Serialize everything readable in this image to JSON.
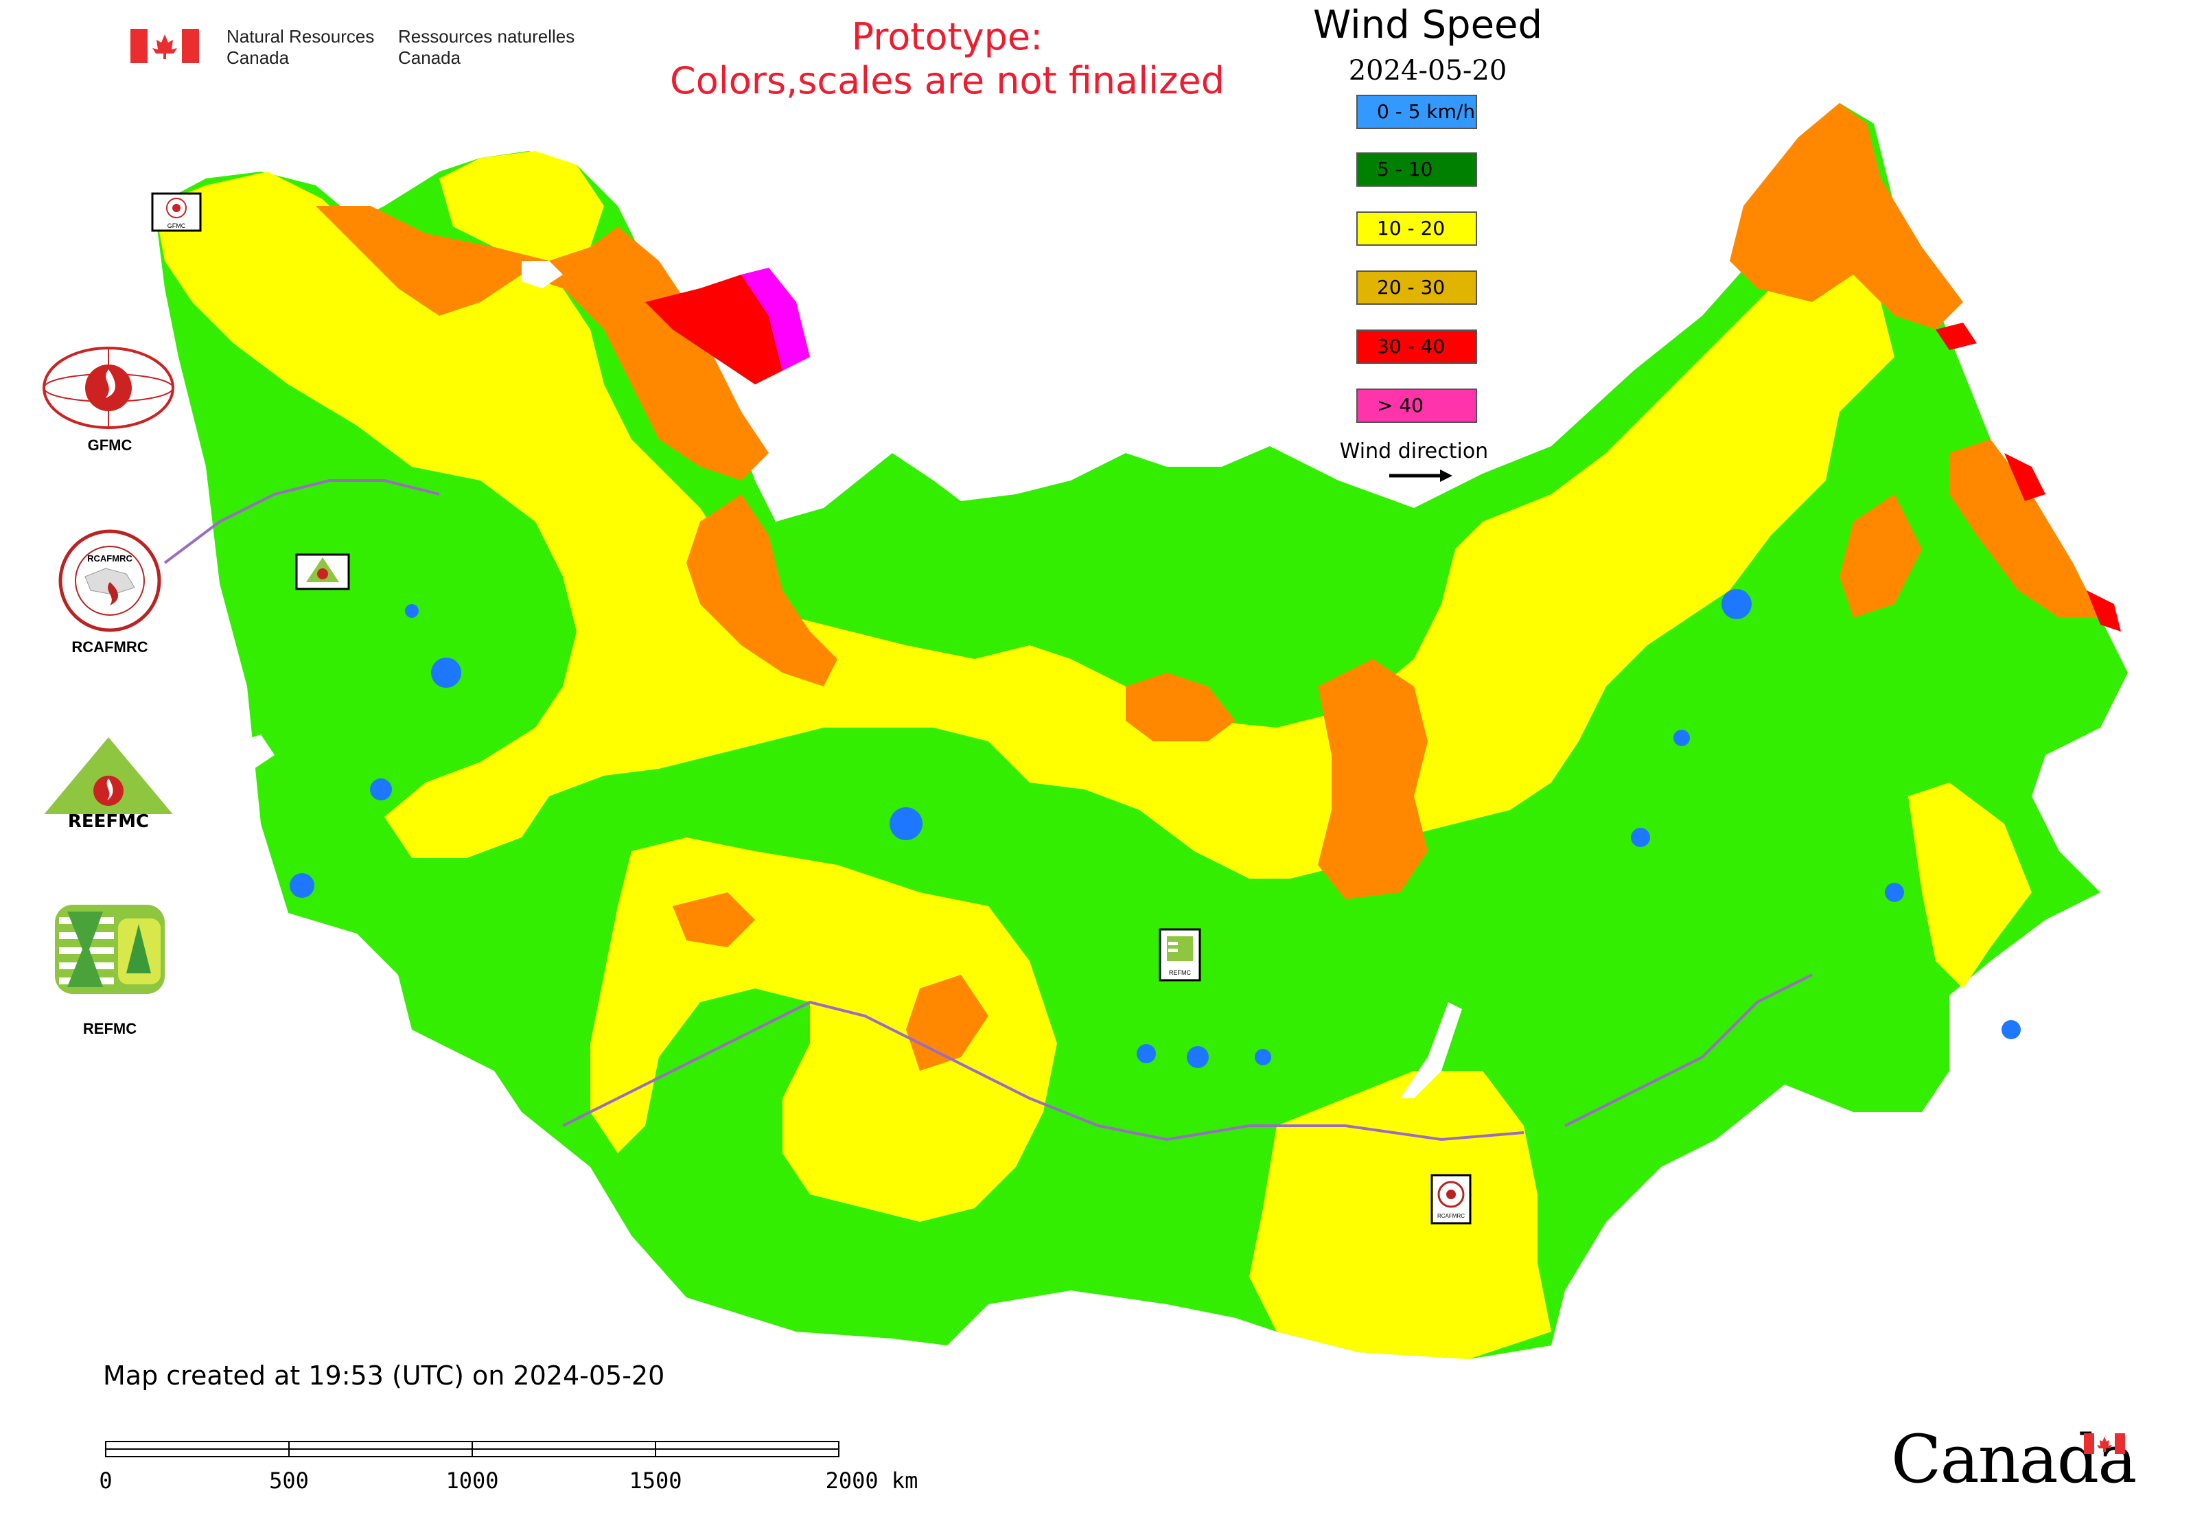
{
  "header": {
    "dept_en_line1": "Natural Resources",
    "dept_en_line2": "Canada",
    "dept_fr_line1": "Ressources naturelles",
    "dept_fr_line2": "Canada",
    "prototype_line1": "Prototype:",
    "prototype_line2": "Colors,scales are not finalized"
  },
  "legend": {
    "title": "Wind Speed",
    "date": "2024-05-20",
    "items": [
      {
        "label": "0 - 5 km/h",
        "color": "#3399ff"
      },
      {
        "label": "5 - 10",
        "color": "#008000"
      },
      {
        "label": "10 - 20",
        "color": "#ffff00"
      },
      {
        "label": "20 - 30",
        "color": "#e0b400"
      },
      {
        "label": "30 - 40",
        "color": "#ff0000"
      },
      {
        "label": "> 40",
        "color": "#ff33aa"
      }
    ],
    "wind_direction_label": "Wind direction"
  },
  "logos": {
    "gfmc": "GFMC",
    "rcafmrc": "RCAFMRC",
    "reefmc": "REEFMC",
    "refmc": "REFMC",
    "rcafmrc_inner": "RCAFMRC",
    "reefmc_inner": "REEFMC"
  },
  "map_markers": {
    "gfmc": "GFMC",
    "reefmc": "REEFMC",
    "refmc": "REFMC",
    "rcafmrc": "RCAFMRC"
  },
  "map_colors": {
    "green": "#33ee00",
    "yellow": "#ffff00",
    "orange": "#ff8800",
    "red": "#ff0000",
    "magenta": "#ff00ff",
    "blue": "#1e78ff",
    "border": "#b070d0"
  },
  "footer": {
    "created": "Map created at 19:53 (UTC) on 2024-05-20",
    "scale_labels": [
      "0",
      "500",
      "1000",
      "1500",
      "2000 km"
    ],
    "canada_wordmark": "Canada"
  }
}
